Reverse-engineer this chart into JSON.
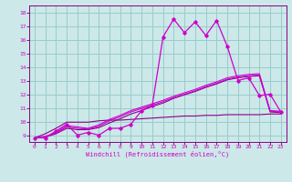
{
  "xlabel": "Windchill (Refroidissement éolien,°C)",
  "xlim": [
    -0.5,
    23.5
  ],
  "ylim": [
    8.5,
    18.5
  ],
  "yticks": [
    9,
    10,
    11,
    12,
    13,
    14,
    15,
    16,
    17,
    18
  ],
  "xticks": [
    0,
    1,
    2,
    3,
    4,
    5,
    6,
    7,
    8,
    9,
    10,
    11,
    12,
    13,
    14,
    15,
    16,
    17,
    18,
    19,
    20,
    21,
    22,
    23
  ],
  "bg_color": "#cce8e8",
  "grid_color": "#99cccc",
  "line_color": "#cc00cc",
  "line_color2": "#880088",
  "series": {
    "main": [
      8.8,
      8.8,
      9.3,
      9.8,
      9.0,
      9.2,
      9.0,
      9.5,
      9.5,
      9.8,
      10.8,
      11.2,
      16.2,
      17.5,
      16.5,
      17.3,
      16.3,
      17.4,
      15.5,
      13.0,
      13.2,
      11.9,
      12.0,
      10.7
    ],
    "line1": [
      8.8,
      8.85,
      9.1,
      9.5,
      9.4,
      9.4,
      9.55,
      9.9,
      10.2,
      10.55,
      10.8,
      11.1,
      11.35,
      11.7,
      11.95,
      12.2,
      12.5,
      12.75,
      13.05,
      13.2,
      13.3,
      13.35,
      10.7,
      10.65
    ],
    "line2": [
      8.8,
      8.9,
      9.15,
      9.6,
      9.5,
      9.45,
      9.65,
      10.05,
      10.35,
      10.7,
      10.95,
      11.2,
      11.45,
      11.75,
      12.0,
      12.25,
      12.55,
      12.8,
      13.1,
      13.25,
      13.35,
      13.4,
      10.75,
      10.7
    ],
    "line3": [
      8.8,
      8.9,
      9.2,
      9.7,
      9.6,
      9.5,
      9.75,
      10.15,
      10.45,
      10.8,
      11.05,
      11.3,
      11.55,
      11.85,
      12.1,
      12.35,
      12.65,
      12.9,
      13.2,
      13.35,
      13.45,
      13.5,
      10.8,
      10.75
    ],
    "flat": [
      8.8,
      9.1,
      9.5,
      9.95,
      9.95,
      9.95,
      10.05,
      10.1,
      10.1,
      10.15,
      10.2,
      10.25,
      10.3,
      10.35,
      10.4,
      10.4,
      10.45,
      10.45,
      10.5,
      10.5,
      10.5,
      10.5,
      10.55,
      10.55
    ]
  }
}
